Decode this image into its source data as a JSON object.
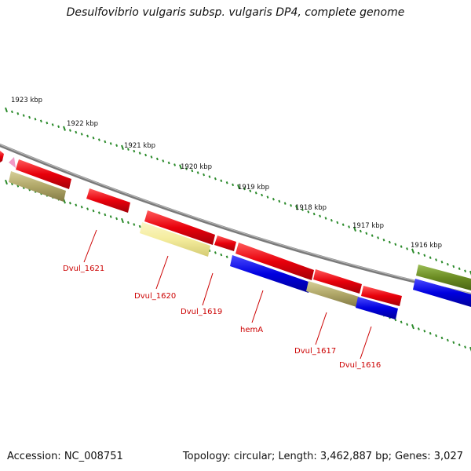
{
  "title": "Desulfovibrio vulgaris subsp. vulgaris DP4, complete genome",
  "footer": {
    "accession": "Accession: NC_008751",
    "stats": "Topology: circular; Length: 3,462,887 bp; Genes: 3,027"
  },
  "colors": {
    "forward_gene": "#e8000b",
    "rna_or_other": "#b0a768",
    "rrna": "#f4ec9c",
    "cog_blue": "#0000e0",
    "cog_olive": "#6b8c23",
    "backbone": "#8c8c8c",
    "ticks": "#2a8a2a",
    "labels": "#cc0000"
  },
  "ruler": {
    "labels": [
      "1923 kbp",
      "1922 kbp",
      "1921 kbp",
      "1920 kbp",
      "1919 kbp",
      "1918 kbp",
      "1917 kbp",
      "1916 kbp"
    ]
  },
  "genes": {
    "labels": [
      "Dvul_1621",
      "Dvul_1620",
      "Dvul_1619",
      "hemA",
      "Dvul_1617",
      "Dvul_1616"
    ]
  }
}
